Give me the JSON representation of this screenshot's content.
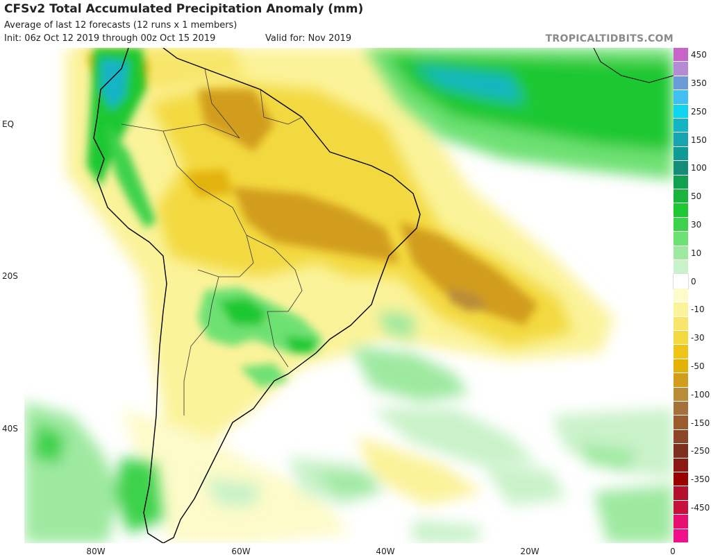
{
  "header": {
    "title": "CFSv2 Total Accumulated Precipitation Anomaly (mm)",
    "subtitle": "Average of last 12 forecasts (12 runs x 1 members)",
    "init": "Init: 06z Oct 12 2019 through 00z Oct 15 2019",
    "valid": "Valid for: Nov 2019",
    "brand": "TROPICALTIDBITS.COM"
  },
  "axes": {
    "lat_labels": [
      "EQ",
      "20S",
      "40S"
    ],
    "lon_labels": [
      "80W",
      "60W",
      "40W",
      "20W",
      "0"
    ]
  },
  "colorbar": {
    "levels": [
      {
        "label": "450",
        "color": "#c864c8"
      },
      {
        "label": "",
        "color": "#b78ad6"
      },
      {
        "label": "350",
        "color": "#6a9bd6"
      },
      {
        "label": "",
        "color": "#40c0f0"
      },
      {
        "label": "250",
        "color": "#0fd4f0"
      },
      {
        "label": "",
        "color": "#14b4c4"
      },
      {
        "label": "150",
        "color": "#17a4b0"
      },
      {
        "label": "",
        "color": "#0f9a96"
      },
      {
        "label": "100",
        "color": "#138c78"
      },
      {
        "label": "",
        "color": "#11a050"
      },
      {
        "label": "50",
        "color": "#19b43c"
      },
      {
        "label": "",
        "color": "#1ec832"
      },
      {
        "label": "30",
        "color": "#3cd24b"
      },
      {
        "label": "",
        "color": "#6ee173"
      },
      {
        "label": "10",
        "color": "#9ee9a0"
      },
      {
        "label": "",
        "color": "#c9f2c9"
      },
      {
        "label": "0",
        "color": "#ffffff"
      },
      {
        "label": "",
        "color": "#fdfbc9"
      },
      {
        "label": "-10",
        "color": "#fbf39a"
      },
      {
        "label": "",
        "color": "#f8e66b"
      },
      {
        "label": "-30",
        "color": "#f3d93f"
      },
      {
        "label": "",
        "color": "#eec517"
      },
      {
        "label": "-50",
        "color": "#e2b207"
      },
      {
        "label": "",
        "color": "#d29d1a"
      },
      {
        "label": "-100",
        "color": "#b98c37"
      },
      {
        "label": "",
        "color": "#a5703a"
      },
      {
        "label": "-150",
        "color": "#9b5b2e"
      },
      {
        "label": "",
        "color": "#8c4626"
      },
      {
        "label": "-250",
        "color": "#7d301e"
      },
      {
        "label": "",
        "color": "#8a1a12"
      },
      {
        "label": "-350",
        "color": "#9a0000"
      },
      {
        "label": "",
        "color": "#b4102d"
      },
      {
        "label": "-450",
        "color": "#c8103c"
      },
      {
        "label": "",
        "color": "#e6106e"
      },
      {
        "label": "",
        "color": "#f0108c"
      }
    ]
  },
  "palette": {
    "ocean": "#ffffff",
    "coast": "#000000",
    "borders": "#333333"
  }
}
